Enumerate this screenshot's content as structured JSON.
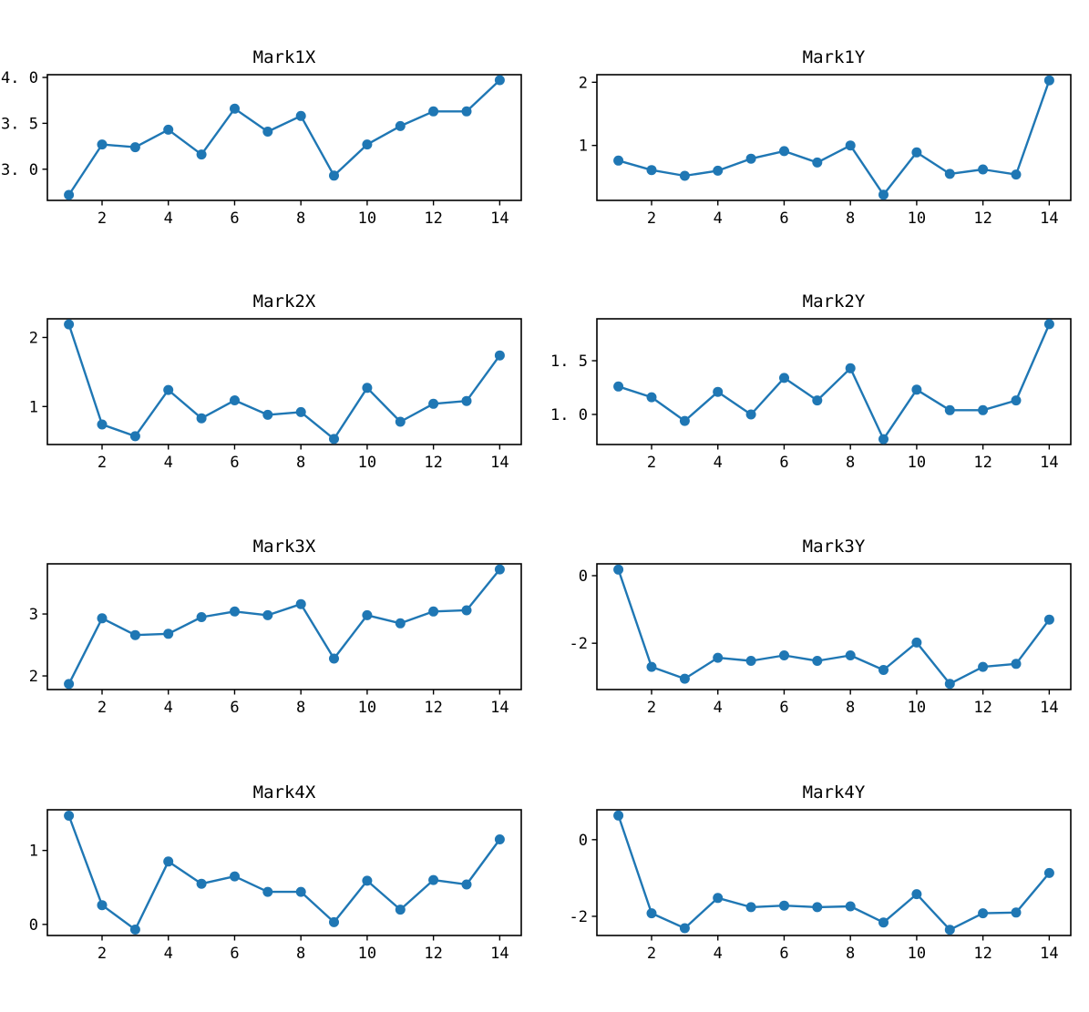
{
  "figure": {
    "background": "#ffffff",
    "line_color": "#1f77b4",
    "marker_color": "#1f77b4",
    "spine_color": "#000000",
    "text_color": "#000000"
  },
  "axes": {
    "xlim": [
      0.35,
      14.65
    ],
    "xticks": [
      2,
      4,
      6,
      8,
      10,
      12,
      14
    ],
    "xtick_labels": [
      "2",
      "4",
      "6",
      "8",
      "10",
      "12",
      "14"
    ],
    "grid": false,
    "legend": "none"
  },
  "chart_data": [
    {
      "type": "line",
      "title": "Mark1X",
      "x": [
        1,
        2,
        3,
        4,
        5,
        6,
        7,
        8,
        9,
        10,
        11,
        12,
        13,
        14
      ],
      "values": [
        2.72,
        3.27,
        3.24,
        3.43,
        3.16,
        3.66,
        3.41,
        3.58,
        2.93,
        3.27,
        3.47,
        3.63,
        3.63,
        3.97
      ],
      "ylim": [
        2.66,
        4.03
      ],
      "ytick_values": [
        3.0,
        3.5,
        4.0
      ],
      "ytick_labels": [
        "3. 0",
        "3. 5",
        "4. 0"
      ]
    },
    {
      "type": "line",
      "title": "Mark1Y",
      "x": [
        1,
        2,
        3,
        4,
        5,
        6,
        7,
        8,
        9,
        10,
        11,
        12,
        13,
        14
      ],
      "values": [
        0.76,
        0.61,
        0.52,
        0.6,
        0.79,
        0.91,
        0.73,
        1.0,
        0.22,
        0.89,
        0.55,
        0.62,
        0.54,
        2.03
      ],
      "ylim": [
        0.13,
        2.12
      ],
      "ytick_values": [
        1,
        2
      ],
      "ytick_labels": [
        "1",
        "2"
      ]
    },
    {
      "type": "line",
      "title": "Mark2X",
      "x": [
        1,
        2,
        3,
        4,
        5,
        6,
        7,
        8,
        9,
        10,
        11,
        12,
        13,
        14
      ],
      "values": [
        2.19,
        0.74,
        0.57,
        1.24,
        0.83,
        1.09,
        0.88,
        0.92,
        0.53,
        1.27,
        0.78,
        1.04,
        1.08,
        1.74
      ],
      "ylim": [
        0.45,
        2.27
      ],
      "ytick_values": [
        1,
        2
      ],
      "ytick_labels": [
        "1",
        "2"
      ]
    },
    {
      "type": "line",
      "title": "Mark2Y",
      "x": [
        1,
        2,
        3,
        4,
        5,
        6,
        7,
        8,
        9,
        10,
        11,
        12,
        13,
        14
      ],
      "values": [
        1.26,
        1.16,
        0.94,
        1.21,
        1.0,
        1.34,
        1.13,
        1.43,
        0.77,
        1.23,
        1.04,
        1.04,
        1.13,
        1.84
      ],
      "ylim": [
        0.72,
        1.89
      ],
      "ytick_values": [
        1.0,
        1.5
      ],
      "ytick_labels": [
        "1. 0",
        "1. 5"
      ]
    },
    {
      "type": "line",
      "title": "Mark3X",
      "x": [
        1,
        2,
        3,
        4,
        5,
        6,
        7,
        8,
        9,
        10,
        11,
        12,
        13,
        14
      ],
      "values": [
        1.87,
        2.93,
        2.66,
        2.68,
        2.95,
        3.04,
        2.98,
        3.16,
        2.28,
        2.98,
        2.85,
        3.04,
        3.06,
        3.72
      ],
      "ylim": [
        1.78,
        3.81
      ],
      "ytick_values": [
        2,
        3
      ],
      "ytick_labels": [
        "2",
        "3"
      ]
    },
    {
      "type": "line",
      "title": "Mark3Y",
      "x": [
        1,
        2,
        3,
        4,
        5,
        6,
        7,
        8,
        9,
        10,
        11,
        12,
        13,
        14
      ],
      "values": [
        0.18,
        -2.7,
        -3.05,
        -2.43,
        -2.52,
        -2.36,
        -2.52,
        -2.36,
        -2.79,
        -1.98,
        -3.2,
        -2.7,
        -2.61,
        -1.3
      ],
      "ylim": [
        -3.37,
        0.35
      ],
      "ytick_values": [
        -2,
        0
      ],
      "ytick_labels": [
        "-2",
        "0"
      ]
    },
    {
      "type": "line",
      "title": "Mark4X",
      "x": [
        1,
        2,
        3,
        4,
        5,
        6,
        7,
        8,
        9,
        10,
        11,
        12,
        13,
        14
      ],
      "values": [
        1.47,
        0.26,
        -0.07,
        0.85,
        0.55,
        0.65,
        0.44,
        0.44,
        0.03,
        0.59,
        0.2,
        0.6,
        0.54,
        1.15
      ],
      "ylim": [
        -0.15,
        1.55
      ],
      "ytick_values": [
        0,
        1
      ],
      "ytick_labels": [
        "0",
        "1"
      ]
    },
    {
      "type": "line",
      "title": "Mark4Y",
      "x": [
        1,
        2,
        3,
        4,
        5,
        6,
        7,
        8,
        9,
        10,
        11,
        12,
        13,
        14
      ],
      "values": [
        0.63,
        -1.92,
        -2.31,
        -1.52,
        -1.76,
        -1.72,
        -1.76,
        -1.74,
        -2.16,
        -1.42,
        -2.35,
        -1.92,
        -1.9,
        -0.87
      ],
      "ylim": [
        -2.5,
        0.78
      ],
      "ytick_values": [
        -2,
        0
      ],
      "ytick_labels": [
        "-2",
        "0"
      ]
    }
  ]
}
